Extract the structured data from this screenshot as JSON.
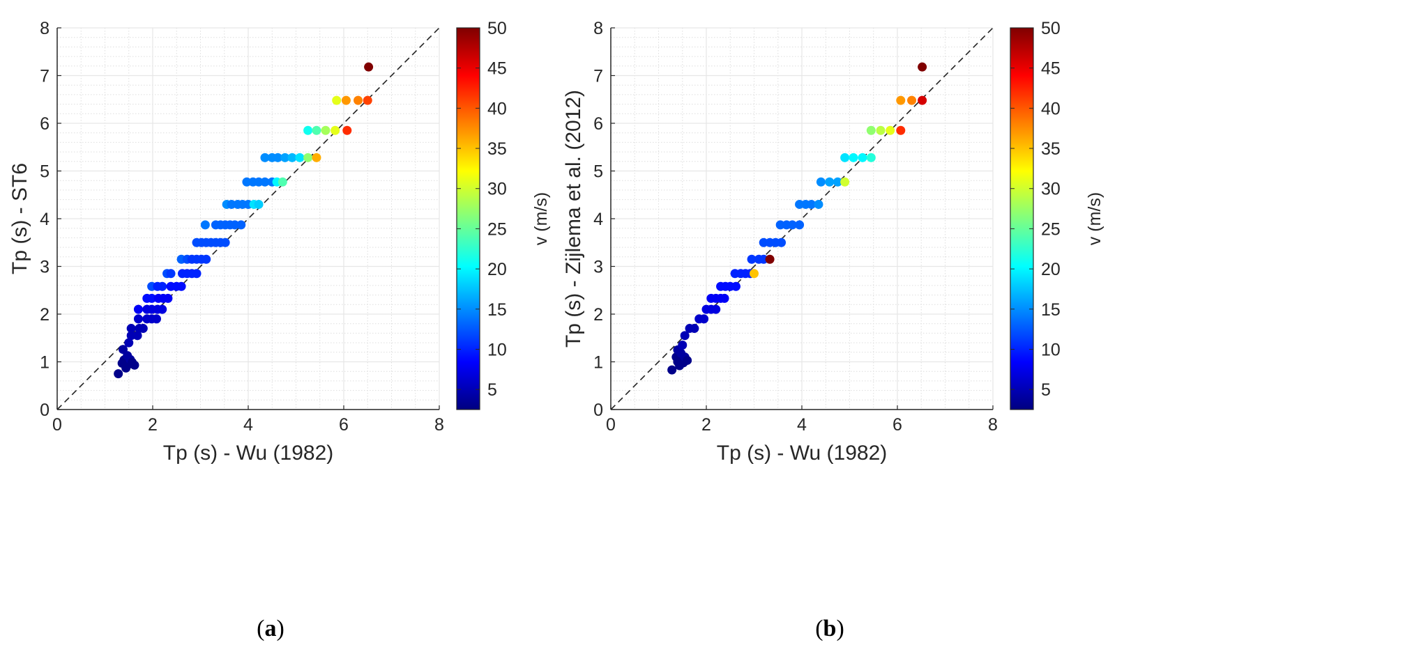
{
  "chart_data": [
    {
      "type": "scatter",
      "panel_label": {
        "open": "(",
        "letter": "a",
        "close": ")"
      },
      "xlabel": "Tp (s) - Wu (1982)",
      "ylabel": "Tp (s) - ST6",
      "xlim": [
        0,
        8
      ],
      "ylim": [
        0,
        8
      ],
      "xticks": [
        "0",
        "2",
        "4",
        "6",
        "8"
      ],
      "yticks": [
        "0",
        "1",
        "2",
        "3",
        "4",
        "5",
        "6",
        "7",
        "8"
      ],
      "grid": true,
      "minor_grid": true,
      "reference_line": "y = x (dashed)",
      "colorbar": {
        "label": "v (m/s)",
        "range": [
          2.5,
          50
        ],
        "ticks": [
          "5",
          "10",
          "15",
          "20",
          "25",
          "30",
          "35",
          "40",
          "45",
          "50"
        ],
        "colormap": "jet"
      },
      "points": [
        {
          "x": 1.28,
          "y": 0.75,
          "v": 3
        },
        {
          "x": 1.36,
          "y": 0.97,
          "v": 3
        },
        {
          "x": 1.4,
          "y": 1.04,
          "v": 3
        },
        {
          "x": 1.44,
          "y": 0.87,
          "v": 3
        },
        {
          "x": 1.47,
          "y": 1.13,
          "v": 4
        },
        {
          "x": 1.5,
          "y": 0.95,
          "v": 3
        },
        {
          "x": 1.53,
          "y": 1.05,
          "v": 4
        },
        {
          "x": 1.57,
          "y": 0.99,
          "v": 3
        },
        {
          "x": 1.62,
          "y": 0.93,
          "v": 3
        },
        {
          "x": 1.38,
          "y": 1.26,
          "v": 4
        },
        {
          "x": 1.5,
          "y": 1.4,
          "v": 5
        },
        {
          "x": 1.55,
          "y": 1.55,
          "v": 5
        },
        {
          "x": 1.55,
          "y": 1.7,
          "v": 5
        },
        {
          "x": 1.68,
          "y": 1.55,
          "v": 5
        },
        {
          "x": 1.72,
          "y": 1.7,
          "v": 5
        },
        {
          "x": 1.8,
          "y": 1.7,
          "v": 5
        },
        {
          "x": 1.7,
          "y": 1.9,
          "v": 6
        },
        {
          "x": 1.88,
          "y": 1.9,
          "v": 6
        },
        {
          "x": 1.98,
          "y": 1.9,
          "v": 6
        },
        {
          "x": 2.08,
          "y": 1.9,
          "v": 6
        },
        {
          "x": 1.7,
          "y": 2.1,
          "v": 8
        },
        {
          "x": 1.88,
          "y": 2.1,
          "v": 7
        },
        {
          "x": 1.98,
          "y": 2.1,
          "v": 7
        },
        {
          "x": 2.1,
          "y": 2.1,
          "v": 7
        },
        {
          "x": 2.2,
          "y": 2.1,
          "v": 7
        },
        {
          "x": 1.88,
          "y": 2.33,
          "v": 9
        },
        {
          "x": 1.98,
          "y": 2.33,
          "v": 9
        },
        {
          "x": 2.12,
          "y": 2.33,
          "v": 8
        },
        {
          "x": 2.22,
          "y": 2.33,
          "v": 8
        },
        {
          "x": 2.32,
          "y": 2.33,
          "v": 8
        },
        {
          "x": 1.98,
          "y": 2.58,
          "v": 12
        },
        {
          "x": 2.1,
          "y": 2.58,
          "v": 10
        },
        {
          "x": 2.2,
          "y": 2.58,
          "v": 10
        },
        {
          "x": 2.38,
          "y": 2.58,
          "v": 9
        },
        {
          "x": 2.5,
          "y": 2.58,
          "v": 9
        },
        {
          "x": 2.6,
          "y": 2.58,
          "v": 9
        },
        {
          "x": 2.3,
          "y": 2.85,
          "v": 12
        },
        {
          "x": 2.38,
          "y": 2.85,
          "v": 11
        },
        {
          "x": 2.62,
          "y": 2.85,
          "v": 10
        },
        {
          "x": 2.72,
          "y": 2.85,
          "v": 10
        },
        {
          "x": 2.82,
          "y": 2.85,
          "v": 10
        },
        {
          "x": 2.92,
          "y": 2.85,
          "v": 10
        },
        {
          "x": 2.6,
          "y": 3.15,
          "v": 13
        },
        {
          "x": 2.72,
          "y": 3.15,
          "v": 12
        },
        {
          "x": 2.82,
          "y": 3.15,
          "v": 11
        },
        {
          "x": 2.92,
          "y": 3.15,
          "v": 11
        },
        {
          "x": 3.02,
          "y": 3.15,
          "v": 11
        },
        {
          "x": 3.12,
          "y": 3.15,
          "v": 11
        },
        {
          "x": 2.92,
          "y": 3.5,
          "v": 12
        },
        {
          "x": 3.02,
          "y": 3.5,
          "v": 12
        },
        {
          "x": 3.12,
          "y": 3.5,
          "v": 12
        },
        {
          "x": 3.22,
          "y": 3.5,
          "v": 12
        },
        {
          "x": 3.32,
          "y": 3.5,
          "v": 12
        },
        {
          "x": 3.42,
          "y": 3.5,
          "v": 12
        },
        {
          "x": 3.52,
          "y": 3.5,
          "v": 12
        },
        {
          "x": 3.1,
          "y": 3.87,
          "v": 14
        },
        {
          "x": 3.32,
          "y": 3.87,
          "v": 13
        },
        {
          "x": 3.42,
          "y": 3.87,
          "v": 13
        },
        {
          "x": 3.52,
          "y": 3.87,
          "v": 13
        },
        {
          "x": 3.62,
          "y": 3.87,
          "v": 13
        },
        {
          "x": 3.72,
          "y": 3.87,
          "v": 13
        },
        {
          "x": 3.85,
          "y": 3.87,
          "v": 13
        },
        {
          "x": 3.55,
          "y": 4.3,
          "v": 15
        },
        {
          "x": 3.65,
          "y": 4.3,
          "v": 14
        },
        {
          "x": 3.78,
          "y": 4.3,
          "v": 14
        },
        {
          "x": 3.88,
          "y": 4.3,
          "v": 14
        },
        {
          "x": 4.0,
          "y": 4.3,
          "v": 14
        },
        {
          "x": 4.12,
          "y": 4.3,
          "v": 19
        },
        {
          "x": 4.22,
          "y": 4.3,
          "v": 18
        },
        {
          "x": 3.97,
          "y": 4.77,
          "v": 14
        },
        {
          "x": 4.1,
          "y": 4.77,
          "v": 14
        },
        {
          "x": 4.22,
          "y": 4.77,
          "v": 14
        },
        {
          "x": 4.35,
          "y": 4.77,
          "v": 14
        },
        {
          "x": 4.5,
          "y": 4.77,
          "v": 14
        },
        {
          "x": 4.6,
          "y": 4.77,
          "v": 20
        },
        {
          "x": 4.72,
          "y": 4.77,
          "v": 24
        },
        {
          "x": 4.35,
          "y": 5.28,
          "v": 15
        },
        {
          "x": 4.5,
          "y": 5.28,
          "v": 15
        },
        {
          "x": 4.62,
          "y": 5.28,
          "v": 15
        },
        {
          "x": 4.77,
          "y": 5.28,
          "v": 16
        },
        {
          "x": 4.92,
          "y": 5.28,
          "v": 17
        },
        {
          "x": 5.08,
          "y": 5.28,
          "v": 19
        },
        {
          "x": 5.25,
          "y": 5.28,
          "v": 27
        },
        {
          "x": 5.43,
          "y": 5.28,
          "v": 36
        },
        {
          "x": 5.25,
          "y": 5.85,
          "v": 21
        },
        {
          "x": 5.43,
          "y": 5.85,
          "v": 24
        },
        {
          "x": 5.62,
          "y": 5.85,
          "v": 28
        },
        {
          "x": 5.82,
          "y": 5.85,
          "v": 31
        },
        {
          "x": 6.07,
          "y": 5.85,
          "v": 42
        },
        {
          "x": 5.85,
          "y": 6.48,
          "v": 31
        },
        {
          "x": 6.05,
          "y": 6.48,
          "v": 37
        },
        {
          "x": 6.3,
          "y": 6.48,
          "v": 38
        },
        {
          "x": 6.5,
          "y": 6.48,
          "v": 41
        },
        {
          "x": 6.52,
          "y": 7.18,
          "v": 50
        }
      ]
    },
    {
      "type": "scatter",
      "panel_label": {
        "open": "(",
        "letter": "b",
        "close": ")"
      },
      "xlabel": "Tp (s) - Wu (1982)",
      "ylabel": "Tp (s) - Zijlema et al. (2012)",
      "xlim": [
        0,
        8
      ],
      "ylim": [
        0,
        8
      ],
      "xticks": [
        "0",
        "2",
        "4",
        "6",
        "8"
      ],
      "yticks": [
        "0",
        "1",
        "2",
        "3",
        "4",
        "5",
        "6",
        "7",
        "8"
      ],
      "grid": true,
      "minor_grid": true,
      "reference_line": "y = x (dashed)",
      "colorbar": {
        "label": "v (m/s)",
        "range": [
          2.5,
          50
        ],
        "ticks": [
          "5",
          "10",
          "15",
          "20",
          "25",
          "30",
          "35",
          "40",
          "45",
          "50"
        ],
        "colormap": "jet"
      },
      "points": [
        {
          "x": 1.28,
          "y": 0.83,
          "v": 3
        },
        {
          "x": 1.37,
          "y": 1.1,
          "v": 3
        },
        {
          "x": 1.4,
          "y": 1.0,
          "v": 3
        },
        {
          "x": 1.44,
          "y": 0.92,
          "v": 3
        },
        {
          "x": 1.47,
          "y": 1.18,
          "v": 4
        },
        {
          "x": 1.52,
          "y": 0.98,
          "v": 3
        },
        {
          "x": 1.55,
          "y": 1.1,
          "v": 4
        },
        {
          "x": 1.6,
          "y": 1.03,
          "v": 3
        },
        {
          "x": 1.4,
          "y": 1.25,
          "v": 4
        },
        {
          "x": 1.5,
          "y": 1.35,
          "v": 5
        },
        {
          "x": 1.55,
          "y": 1.55,
          "v": 5
        },
        {
          "x": 1.65,
          "y": 1.7,
          "v": 5
        },
        {
          "x": 1.75,
          "y": 1.7,
          "v": 5
        },
        {
          "x": 1.85,
          "y": 1.9,
          "v": 6
        },
        {
          "x": 1.95,
          "y": 1.9,
          "v": 6
        },
        {
          "x": 2.0,
          "y": 2.1,
          "v": 7
        },
        {
          "x": 2.1,
          "y": 2.1,
          "v": 7
        },
        {
          "x": 2.2,
          "y": 2.1,
          "v": 7
        },
        {
          "x": 2.1,
          "y": 2.33,
          "v": 8
        },
        {
          "x": 2.2,
          "y": 2.33,
          "v": 8
        },
        {
          "x": 2.3,
          "y": 2.33,
          "v": 8
        },
        {
          "x": 2.38,
          "y": 2.33,
          "v": 8
        },
        {
          "x": 2.3,
          "y": 2.58,
          "v": 9
        },
        {
          "x": 2.4,
          "y": 2.58,
          "v": 9
        },
        {
          "x": 2.5,
          "y": 2.58,
          "v": 9
        },
        {
          "x": 2.62,
          "y": 2.58,
          "v": 9
        },
        {
          "x": 2.6,
          "y": 2.85,
          "v": 10
        },
        {
          "x": 2.72,
          "y": 2.85,
          "v": 10
        },
        {
          "x": 2.82,
          "y": 2.85,
          "v": 10
        },
        {
          "x": 2.92,
          "y": 2.85,
          "v": 10
        },
        {
          "x": 3.0,
          "y": 2.85,
          "v": 35
        },
        {
          "x": 2.95,
          "y": 3.15,
          "v": 11
        },
        {
          "x": 3.1,
          "y": 3.15,
          "v": 11
        },
        {
          "x": 3.2,
          "y": 3.15,
          "v": 11
        },
        {
          "x": 3.33,
          "y": 3.15,
          "v": 50
        },
        {
          "x": 3.2,
          "y": 3.5,
          "v": 12
        },
        {
          "x": 3.33,
          "y": 3.5,
          "v": 12
        },
        {
          "x": 3.45,
          "y": 3.5,
          "v": 12
        },
        {
          "x": 3.57,
          "y": 3.5,
          "v": 12
        },
        {
          "x": 3.55,
          "y": 3.87,
          "v": 13
        },
        {
          "x": 3.68,
          "y": 3.87,
          "v": 13
        },
        {
          "x": 3.8,
          "y": 3.87,
          "v": 13
        },
        {
          "x": 3.95,
          "y": 3.87,
          "v": 13
        },
        {
          "x": 3.95,
          "y": 4.3,
          "v": 14
        },
        {
          "x": 4.08,
          "y": 4.3,
          "v": 14
        },
        {
          "x": 4.2,
          "y": 4.3,
          "v": 14
        },
        {
          "x": 4.35,
          "y": 4.3,
          "v": 15
        },
        {
          "x": 4.4,
          "y": 4.77,
          "v": 15
        },
        {
          "x": 4.58,
          "y": 4.77,
          "v": 16
        },
        {
          "x": 4.75,
          "y": 4.77,
          "v": 16
        },
        {
          "x": 4.9,
          "y": 4.77,
          "v": 30
        },
        {
          "x": 4.9,
          "y": 5.28,
          "v": 19
        },
        {
          "x": 5.08,
          "y": 5.28,
          "v": 20
        },
        {
          "x": 5.27,
          "y": 5.28,
          "v": 20
        },
        {
          "x": 5.45,
          "y": 5.28,
          "v": 22
        },
        {
          "x": 5.45,
          "y": 5.85,
          "v": 27
        },
        {
          "x": 5.65,
          "y": 5.85,
          "v": 29
        },
        {
          "x": 5.85,
          "y": 5.85,
          "v": 31
        },
        {
          "x": 6.07,
          "y": 5.85,
          "v": 42
        },
        {
          "x": 6.07,
          "y": 6.48,
          "v": 37
        },
        {
          "x": 6.3,
          "y": 6.48,
          "v": 38
        },
        {
          "x": 6.52,
          "y": 6.48,
          "v": 46
        },
        {
          "x": 6.52,
          "y": 7.18,
          "v": 50
        }
      ]
    }
  ]
}
